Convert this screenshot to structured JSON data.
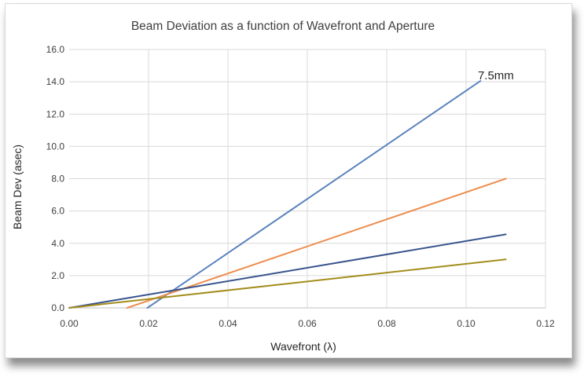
{
  "chart_data": {
    "type": "line",
    "title": "Beam Deviation as a function of Wavefront and Aperture",
    "xlabel": "Wavefront (λ)",
    "ylabel": "Beam Dev (asec)",
    "xlim": [
      0,
      0.12
    ],
    "ylim": [
      0,
      16
    ],
    "x_ticks": [
      "0.00",
      "0.02",
      "0.04",
      "0.06",
      "0.08",
      "0.10",
      "0.12"
    ],
    "y_ticks": [
      "0.0",
      "2.0",
      "4.0",
      "6.0",
      "8.0",
      "10.0",
      "12.0",
      "14.0",
      "16.0"
    ],
    "grid": true,
    "legend": "none",
    "series": [
      {
        "color": "#5b83bd",
        "points": [
          [
            0.0197,
            0.0
          ],
          [
            0.1036,
            14.05
          ]
        ]
      },
      {
        "color": "#ed8d4d",
        "points": [
          [
            0.0146,
            0.0
          ],
          [
            0.11,
            8.0
          ]
        ]
      },
      {
        "color": "#38548d",
        "points": [
          [
            0.0,
            0.0
          ],
          [
            0.11,
            4.55
          ]
        ]
      },
      {
        "color": "#a38d1c",
        "points": [
          [
            0.0,
            0.0
          ],
          [
            0.11,
            3.0
          ]
        ]
      }
    ],
    "annotations": [
      {
        "text": "7.5mm",
        "x": 0.1075,
        "y": 14.4
      }
    ]
  }
}
